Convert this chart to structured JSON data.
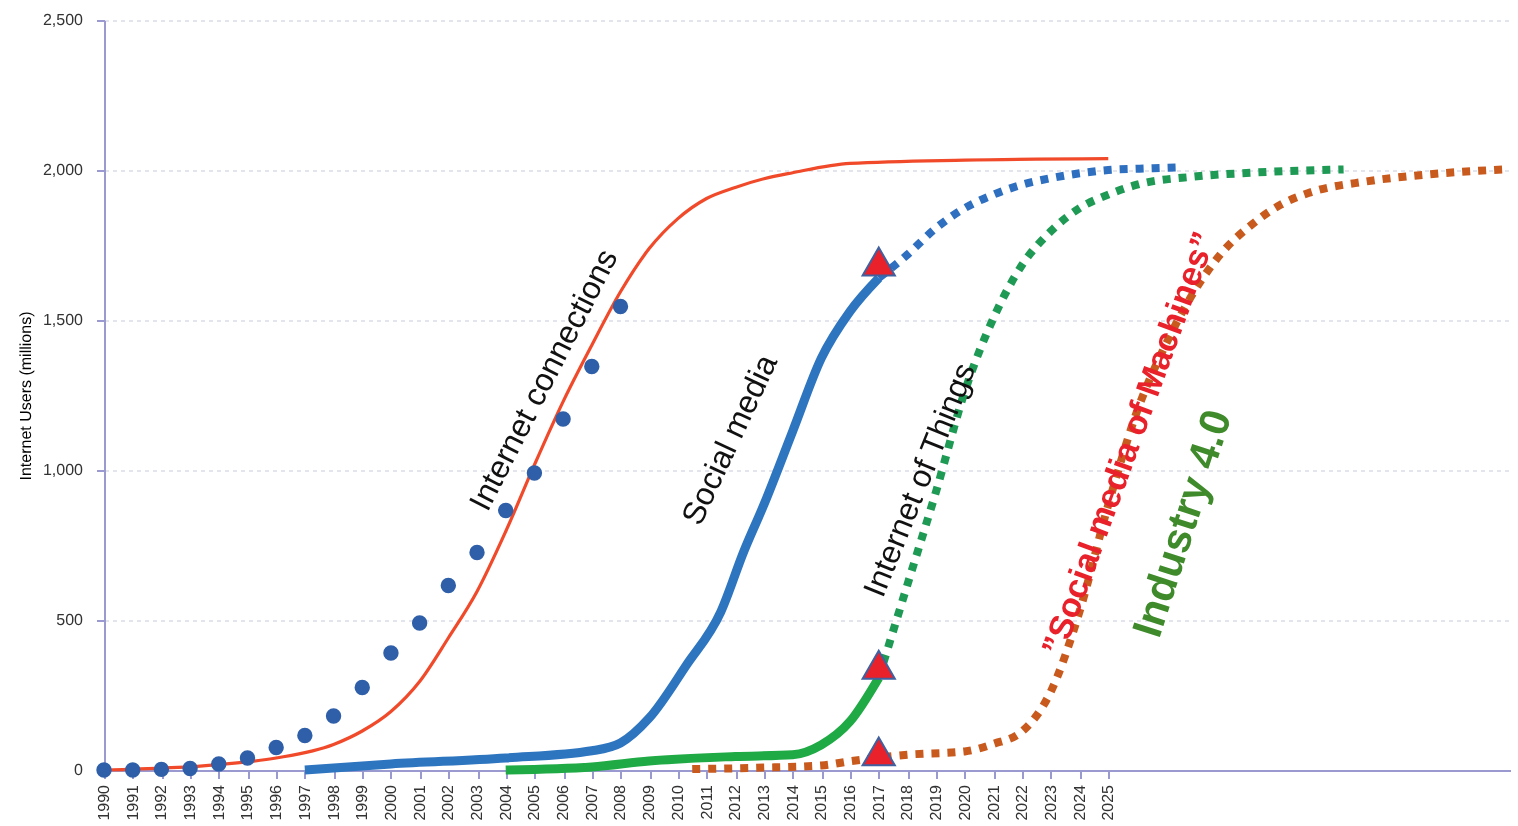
{
  "chart_data": {
    "type": "line",
    "ylabel": "Internet Users (millions)",
    "xlim": [
      1990,
      2039
    ],
    "xticks": [
      1990,
      1991,
      1992,
      1993,
      1994,
      1995,
      1996,
      1997,
      1998,
      1999,
      2000,
      2001,
      2002,
      2003,
      2004,
      2005,
      2006,
      2007,
      2008,
      2009,
      2010,
      2011,
      2012,
      2013,
      2014,
      2015,
      2016,
      2017,
      2018,
      2019,
      2020,
      2021,
      2022,
      2023,
      2024,
      2025
    ],
    "ylim": [
      0,
      2500
    ],
    "yticks": [
      0,
      500,
      {
        "value": 1000,
        "label": "1,000"
      },
      {
        "value": 1500,
        "label": "1,500"
      },
      {
        "value": 2000,
        "label": "2,000"
      },
      {
        "value": 2500,
        "label": "2,500"
      }
    ],
    "grid": "y",
    "series": [
      {
        "color": "#f04a2a",
        "line_style": "solid",
        "marker": "none",
        "x": [
          1990,
          1994,
          1996,
          1998,
          1999,
          2000,
          2001,
          2002,
          2003,
          2004,
          2005,
          2006,
          2007,
          2008,
          2009,
          2010,
          2011,
          2012,
          2013,
          2014,
          2016,
          2020,
          2025
        ],
        "values": [
          0,
          18,
          40,
          85,
          130,
          195,
          295,
          440,
          595,
          795,
          1017,
          1228,
          1416,
          1594,
          1738,
          1838,
          1905,
          1942,
          1971,
          1991,
          2022,
          2033,
          2038
        ]
      },
      {
        "type": "scatter",
        "color": "#2f5fa8",
        "marker": "circle",
        "x": [
          1990,
          1991,
          1992,
          1993,
          1994,
          1995,
          1996,
          1997,
          1998,
          1999,
          2000,
          2001,
          2002,
          2003,
          2004,
          2005,
          2006,
          2007,
          2008
        ],
        "values": [
          0,
          0,
          2,
          5,
          20,
          40,
          75,
          115,
          180,
          275,
          390,
          490,
          615,
          725,
          865,
          990,
          1170,
          1345,
          1545
        ]
      },
      {
        "color": "#2e75c0",
        "line_style": "solid",
        "marker": "none",
        "x": [
          1997,
          2000,
          2004,
          2007,
          2008,
          2009,
          2010.3,
          2011.5,
          2012.3,
          2013,
          2014,
          2015,
          2016,
          2017
        ],
        "values": [
          0,
          20,
          40,
          64,
          90,
          173,
          350,
          528,
          729,
          885,
          1129,
          1373,
          1529,
          1640
        ]
      },
      {
        "color": "#2e6fc0",
        "line_style": "dotted",
        "marker": "none",
        "x": [
          2017,
          2018,
          2019,
          2020,
          2021,
          2022,
          2023,
          2024,
          2025,
          2026,
          2027.5
        ],
        "values": [
          1640,
          1718,
          1807,
          1873,
          1918,
          1951,
          1973,
          1989,
          2000,
          2004,
          2009
        ]
      },
      {
        "color": "#1faa45",
        "line_style": "solid",
        "marker": "none",
        "x": [
          2004,
          2007,
          2009,
          2012,
          2014,
          2015,
          2016,
          2017
        ],
        "values": [
          0,
          10,
          30,
          45,
          51,
          84,
          162,
          307
        ]
      },
      {
        "color": "#1e9a55",
        "line_style": "dotted",
        "marker": "none",
        "x": [
          2017,
          2018,
          2019,
          2020,
          2021,
          2022,
          2023,
          2024,
          2025,
          2026,
          2028,
          2030,
          2033.2
        ],
        "values": [
          307,
          618,
          929,
          1262,
          1507,
          1684,
          1796,
          1873,
          1918,
          1951,
          1978,
          1991,
          2002
        ]
      },
      {
        "color": "#c85a1e",
        "line_style": "dotted",
        "marker": "none",
        "x": [
          2010.5,
          2013,
          2015,
          2016,
          2018,
          2020,
          2021,
          2022,
          2023,
          2024,
          2025,
          2026,
          2027,
          2028,
          2029,
          2030,
          2031,
          2032,
          2034,
          2036,
          2038.8
        ],
        "values": [
          3,
          8,
          15,
          29,
          51,
          62,
          87,
          129,
          262,
          529,
          884,
          1195,
          1418,
          1596,
          1729,
          1818,
          1884,
          1924,
          1962,
          1984,
          2002
        ]
      },
      {
        "type": "scatter",
        "color": "#e8212a",
        "marker": "triangle",
        "x": [
          2017,
          2017,
          2017
        ],
        "values": [
          1695,
          351,
          62
        ]
      }
    ],
    "annotations": [
      "Internet connections",
      "Social media",
      "Internet of Things",
      "”Social media of Machines”",
      "Industry 4.0"
    ]
  }
}
